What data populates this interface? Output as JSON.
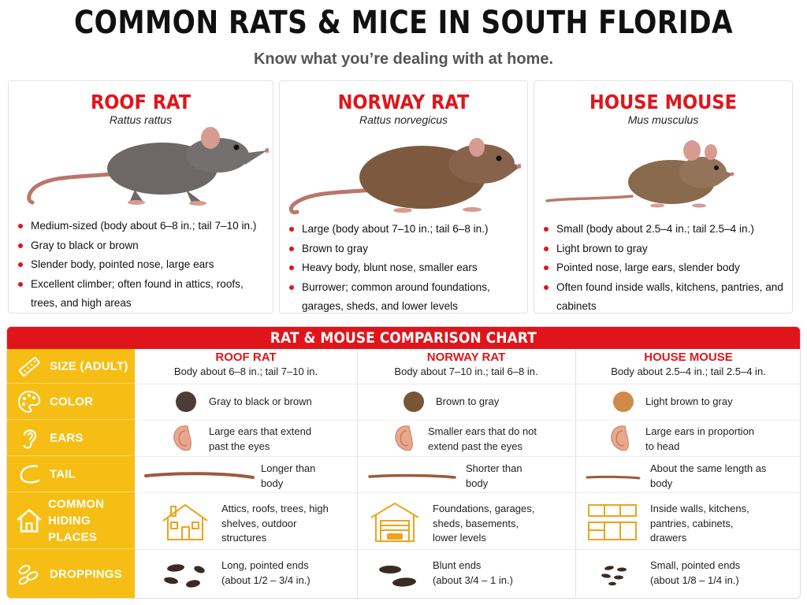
{
  "header": {
    "title": "COMMON RATS & MICE IN SOUTH FLORIDA",
    "subtitle": "Know what you’re dealing with at home."
  },
  "cards": [
    {
      "name": "ROOF RAT",
      "scientific": "Rattus rattus",
      "bullets": [
        "Medium-sized (body about 6–8 in.; tail 7–10 in.)",
        "Gray to black or brown",
        "Slender body, pointed nose, large ears",
        "Excellent climber; often found in attics, roofs, trees, and high areas"
      ]
    },
    {
      "name": "NORWAY RAT",
      "scientific": "Rattus norvegicus",
      "bullets": [
        "Large (body about 7–10 in.; tail 6–8 in.)",
        "Brown to gray",
        "Heavy body, blunt nose, smaller ears",
        "Burrower; common around foundations, garages, sheds, and lower levels"
      ]
    },
    {
      "name": "HOUSE MOUSE",
      "scientific": "Mus musculus",
      "bullets": [
        "Small (body about 2.5–4 in.; tail 2.5–4 in.)",
        "Light brown to gray",
        "Pointed nose, large ears, slender body",
        "Often found inside walls, kitchens, pantries, and cabinets"
      ]
    }
  ],
  "chart": {
    "title": "RAT & MOUSE COMPARISON CHART",
    "columns": [
      {
        "name": "ROOF RAT",
        "size": "Body about 6–8 in.; tail 7–10 in."
      },
      {
        "name": "NORWAY RAT",
        "size": "Body about 7–10 in.; tail 6–8 in."
      },
      {
        "name": "HOUSE MOUSE",
        "size": "Body about 2.5–4 in.; tail 2.5–4 in."
      }
    ],
    "rows": {
      "size": {
        "label": "SIZE (ADULT)",
        "icon": "ruler-icon"
      },
      "color": {
        "label": "COLOR",
        "icon": "palette-icon",
        "cells": [
          "Gray to black or brown",
          "Brown to gray",
          "Light brown to gray"
        ],
        "swatches": [
          "#4a3d36",
          "#7a5535",
          "#cf8a4c"
        ]
      },
      "ears": {
        "label": "EARS",
        "icon": "ear-icon",
        "cells": [
          "Large ears that extend past the eyes",
          "Smaller ears that do not extend past the eyes",
          "Large ears in proportion to head"
        ]
      },
      "tail": {
        "label": "TAIL",
        "icon": "tail-icon",
        "cells": [
          "Longer than body",
          "Shorter than body",
          "About the same length as body"
        ]
      },
      "hiding": {
        "label_line1": "COMMON",
        "label_line2": "HIDING PLACES",
        "icon": "house-icon",
        "cells": [
          "Attics, roofs, trees, high shelves, outdoor structures",
          "Foundations, garages, sheds, basements, lower levels",
          "Inside walls, kitchens, pantries, cabinets, drawers"
        ]
      },
      "droppings": {
        "label": "DROPPINGS",
        "icon": "droppings-icon",
        "cells_line1": [
          "Long, pointed ends",
          "Blunt ends",
          "Small, pointed ends"
        ],
        "cells_line2": [
          "(about 1/2 – 3/4 in.)",
          "(about 3/4 – 1 in.)",
          "(about 1/8 – 1/4 in.)"
        ]
      }
    }
  },
  "colors": {
    "accent_red": "#e0151b",
    "label_yellow": "#f6be14"
  }
}
